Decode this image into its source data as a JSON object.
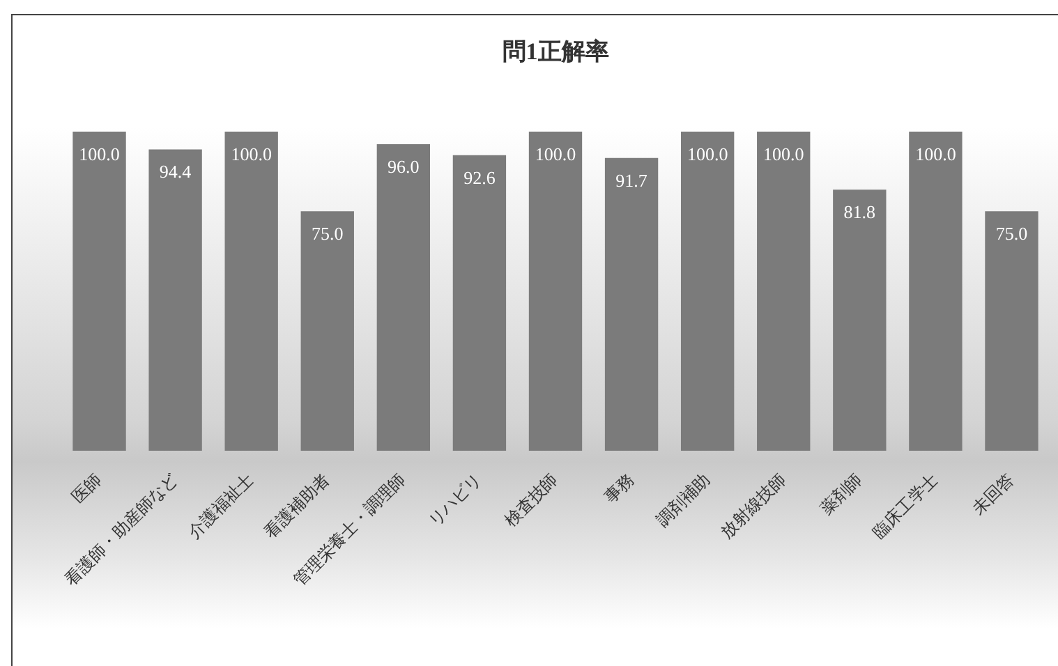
{
  "chart_data": {
    "type": "bar",
    "title": "問1正解率",
    "categories": [
      "医師",
      "看護師・助産師など",
      "介護福祉士",
      "看護補助者",
      "管理栄養士・調理師",
      "リハビリ",
      "検査技師",
      "事務",
      "調剤補助",
      "放射線技師",
      "薬剤師",
      "臨床工学士",
      "未回答"
    ],
    "values": [
      100,
      94.4,
      100,
      75,
      96,
      92.6,
      100,
      91.7,
      100,
      100,
      81.8,
      100,
      75
    ],
    "value_labels": [
      "100.0",
      "94.4",
      "100.0",
      "75.0",
      "96.0",
      "92.6",
      "100.0",
      "91.7",
      "100.0",
      "100.0",
      "81.8",
      "100.0",
      "75.0"
    ],
    "color": "#7b7b7b",
    "ylim": [
      0,
      100
    ],
    "tick_labels": "x"
  }
}
